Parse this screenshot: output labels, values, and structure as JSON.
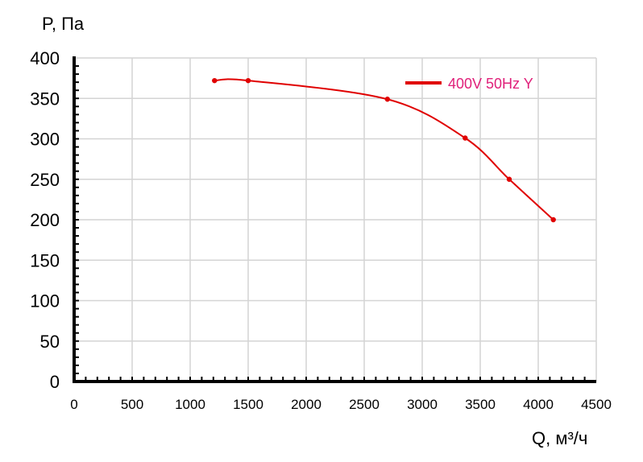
{
  "chart_data": {
    "type": "line",
    "title": "",
    "ylabel": "P, Па",
    "xlabel": "Q, м³/ч",
    "xlim": [
      0,
      4500
    ],
    "ylim": [
      0,
      400
    ],
    "x_ticks": [
      0,
      500,
      1000,
      1500,
      2000,
      2500,
      3000,
      3500,
      4000,
      4500
    ],
    "y_ticks": [
      0,
      50,
      100,
      150,
      200,
      250,
      300,
      350,
      400
    ],
    "grid": true,
    "legend_position": "top-right",
    "series": [
      {
        "name": "400V 50Hz Y",
        "color": "#e00000",
        "legend_text_color": "#e0207a",
        "x": [
          1210,
          1500,
          2700,
          3370,
          3750,
          4130
        ],
        "y": [
          372,
          372,
          349,
          301,
          250,
          200
        ]
      }
    ]
  }
}
